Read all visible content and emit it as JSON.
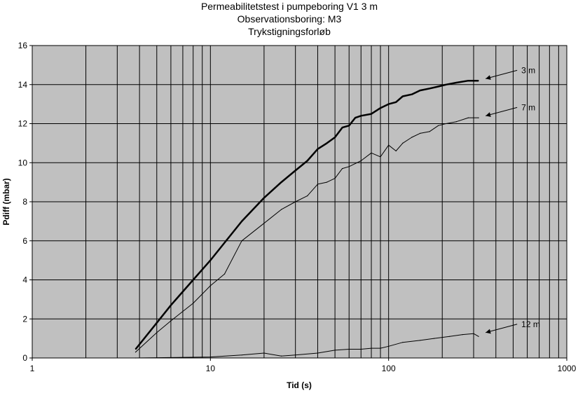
{
  "chart_data": {
    "type": "line",
    "title_lines": [
      "Permeabilitetstest i pumpeboring V1 3 m",
      "Observationsboring: M3",
      "Trykstigningsforløb"
    ],
    "xlabel": "Tid (s)",
    "ylabel": "Pdiff (mbar)",
    "x_scale": "log",
    "xlim": [
      1,
      1000
    ],
    "ylim": [
      0,
      16
    ],
    "x_tick_labels": [
      "1",
      "10",
      "100",
      "1000"
    ],
    "y_tick_labels": [
      "0",
      "2",
      "4",
      "6",
      "8",
      "10",
      "12",
      "14",
      "16"
    ],
    "grid": true,
    "plot_background": "#c0c0c0",
    "series": [
      {
        "name": "3 m",
        "stroke_width": "bold",
        "points": [
          [
            3.8,
            0.45
          ],
          [
            5,
            1.8
          ],
          [
            6,
            2.7
          ],
          [
            8,
            4.0
          ],
          [
            10,
            5.0
          ],
          [
            15,
            7.0
          ],
          [
            20,
            8.2
          ],
          [
            25,
            9.0
          ],
          [
            30,
            9.6
          ],
          [
            35,
            10.1
          ],
          [
            40,
            10.7
          ],
          [
            45,
            11.0
          ],
          [
            50,
            11.3
          ],
          [
            55,
            11.8
          ],
          [
            60,
            11.9
          ],
          [
            65,
            12.3
          ],
          [
            70,
            12.4
          ],
          [
            80,
            12.5
          ],
          [
            90,
            12.8
          ],
          [
            100,
            13.0
          ],
          [
            110,
            13.1
          ],
          [
            120,
            13.4
          ],
          [
            135,
            13.5
          ],
          [
            150,
            13.7
          ],
          [
            170,
            13.8
          ],
          [
            190,
            13.9
          ],
          [
            210,
            14.0
          ],
          [
            240,
            14.1
          ],
          [
            280,
            14.2
          ],
          [
            320,
            14.2
          ]
        ]
      },
      {
        "name": "7 m",
        "stroke_width": "thin",
        "points": [
          [
            3.8,
            0.3
          ],
          [
            5,
            1.3
          ],
          [
            6,
            1.9
          ],
          [
            8,
            2.8
          ],
          [
            10,
            3.7
          ],
          [
            12,
            4.3
          ],
          [
            15,
            6.0
          ],
          [
            20,
            6.9
          ],
          [
            25,
            7.6
          ],
          [
            30,
            8.0
          ],
          [
            35,
            8.3
          ],
          [
            40,
            8.9
          ],
          [
            45,
            9.0
          ],
          [
            50,
            9.2
          ],
          [
            55,
            9.7
          ],
          [
            60,
            9.8
          ],
          [
            70,
            10.1
          ],
          [
            80,
            10.5
          ],
          [
            90,
            10.3
          ],
          [
            100,
            10.9
          ],
          [
            110,
            10.6
          ],
          [
            120,
            11.0
          ],
          [
            135,
            11.3
          ],
          [
            150,
            11.5
          ],
          [
            170,
            11.6
          ],
          [
            190,
            11.9
          ],
          [
            210,
            12.0
          ],
          [
            240,
            12.1
          ],
          [
            280,
            12.3
          ],
          [
            320,
            12.3
          ]
        ]
      },
      {
        "name": "12 m",
        "stroke_width": "thin",
        "points": [
          [
            3.8,
            0.0
          ],
          [
            6,
            0.02
          ],
          [
            10,
            0.05
          ],
          [
            15,
            0.15
          ],
          [
            20,
            0.25
          ],
          [
            25,
            0.1
          ],
          [
            30,
            0.15
          ],
          [
            40,
            0.25
          ],
          [
            50,
            0.4
          ],
          [
            60,
            0.45
          ],
          [
            70,
            0.45
          ],
          [
            80,
            0.5
          ],
          [
            90,
            0.5
          ],
          [
            100,
            0.6
          ],
          [
            120,
            0.8
          ],
          [
            150,
            0.9
          ],
          [
            180,
            1.0
          ],
          [
            220,
            1.1
          ],
          [
            260,
            1.2
          ],
          [
            300,
            1.25
          ],
          [
            320,
            1.1
          ]
        ]
      }
    ],
    "annotations": [
      {
        "text": "3 m",
        "series": "3 m",
        "point_to": [
          320,
          14.3
        ]
      },
      {
        "text": "7 m",
        "series": "7 m",
        "point_to": [
          320,
          12.4
        ]
      },
      {
        "text": "12 m",
        "series": "12 m",
        "point_to": [
          320,
          1.3
        ]
      }
    ]
  }
}
